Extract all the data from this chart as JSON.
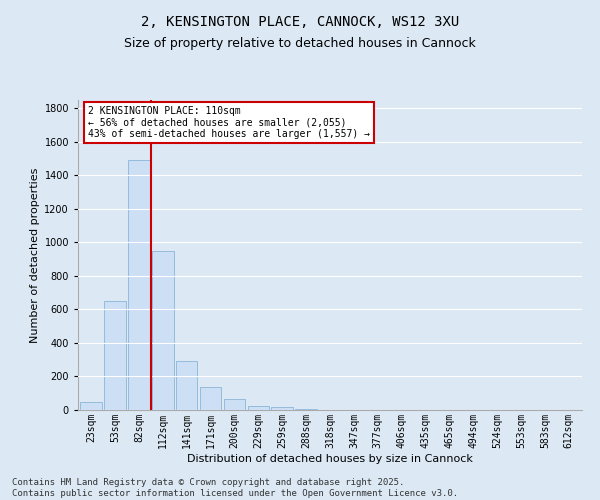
{
  "title": "2, KENSINGTON PLACE, CANNOCK, WS12 3XU",
  "subtitle": "Size of property relative to detached houses in Cannock",
  "xlabel": "Distribution of detached houses by size in Cannock",
  "ylabel": "Number of detached properties",
  "categories": [
    "23sqm",
    "53sqm",
    "82sqm",
    "112sqm",
    "141sqm",
    "171sqm",
    "200sqm",
    "229sqm",
    "259sqm",
    "288sqm",
    "318sqm",
    "347sqm",
    "377sqm",
    "406sqm",
    "435sqm",
    "465sqm",
    "494sqm",
    "524sqm",
    "553sqm",
    "583sqm",
    "612sqm"
  ],
  "values": [
    45,
    650,
    1490,
    950,
    295,
    140,
    65,
    25,
    15,
    5,
    2,
    0,
    0,
    0,
    0,
    0,
    0,
    0,
    0,
    0,
    0
  ],
  "bar_color": "#ccdff5",
  "bar_edge_color": "#8ab4d9",
  "vline_color": "#cc0000",
  "vline_x_index": 3,
  "annotation_text": "2 KENSINGTON PLACE: 110sqm\n← 56% of detached houses are smaller (2,055)\n43% of semi-detached houses are larger (1,557) →",
  "annotation_box_facecolor": "#ffffff",
  "annotation_box_edgecolor": "#cc0000",
  "ylim": [
    0,
    1850
  ],
  "yticks": [
    0,
    200,
    400,
    600,
    800,
    1000,
    1200,
    1400,
    1600,
    1800
  ],
  "background_color": "#dce9f5",
  "grid_color": "#ffffff",
  "footer_line1": "Contains HM Land Registry data © Crown copyright and database right 2025.",
  "footer_line2": "Contains public sector information licensed under the Open Government Licence v3.0.",
  "title_fontsize": 10,
  "subtitle_fontsize": 9,
  "axis_label_fontsize": 8,
  "tick_fontsize": 7,
  "footer_fontsize": 6.5,
  "annotation_fontsize": 7
}
